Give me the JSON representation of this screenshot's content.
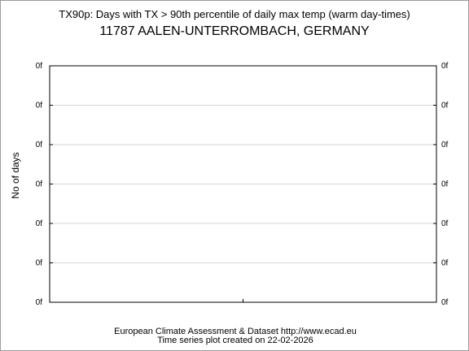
{
  "chart_data": {
    "type": "line",
    "title": "TX90p: Days with TX > 90th percentile of daily max temp (warm day-times)",
    "subtitle": "11787 AALEN-UNTERROMBACH, GERMANY",
    "ylabel": "No of days",
    "xlabel": "",
    "y_tick_labels": [
      "0f",
      "0f",
      "0f",
      "0f",
      "0f",
      "0f",
      "0f"
    ],
    "grid": true,
    "series": [],
    "footer": {
      "line1": "European Climate Assessment & Dataset  http://www.ecad.eu",
      "line2": "Time series plot created on 22-02-2026"
    }
  }
}
